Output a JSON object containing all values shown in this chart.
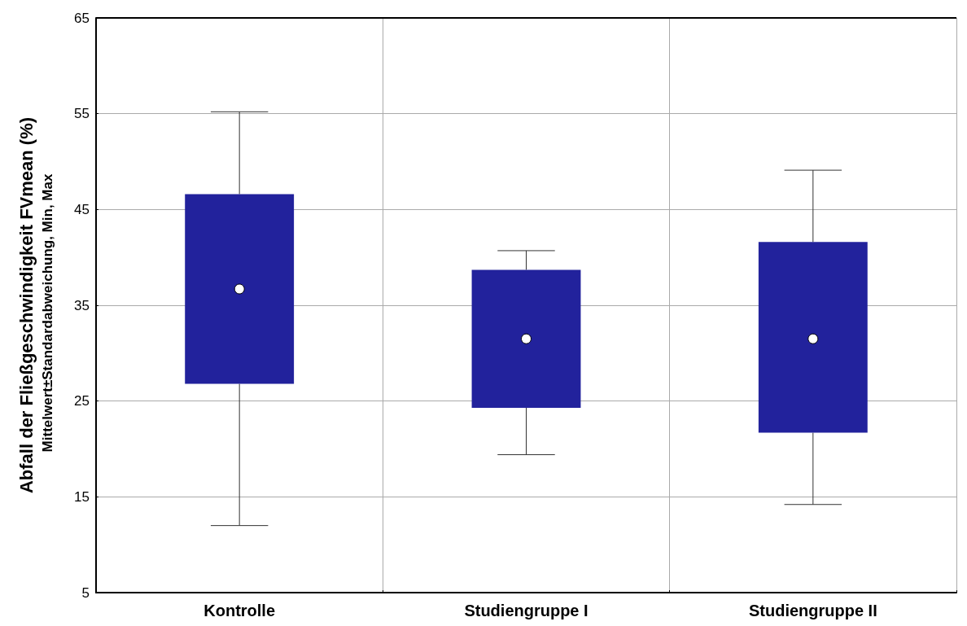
{
  "chart_data": {
    "type": "box",
    "ylabel": "Abfall der Fließgeschwindigkeit FVmean (%)",
    "annotations": [
      "Mittelwert±Standardabweichung, Min, Max"
    ],
    "categories": [
      "Kontrolle",
      "Studiengruppe I",
      "Studiengruppe II"
    ],
    "color": "#22229c",
    "boxes": [
      {
        "low": 12.0,
        "q1": 26.8,
        "median": 36.7,
        "q3": 46.6,
        "high": 55.2
      },
      {
        "low": 19.4,
        "q1": 24.3,
        "median": 31.5,
        "q3": 38.7,
        "high": 40.7
      },
      {
        "low": 14.2,
        "q1": 21.7,
        "median": 31.5,
        "q3": 41.6,
        "high": 49.1
      }
    ],
    "ylim": [
      5,
      65
    ],
    "yticks": [
      5,
      15,
      25,
      35,
      45,
      55,
      65
    ],
    "grid": true
  }
}
